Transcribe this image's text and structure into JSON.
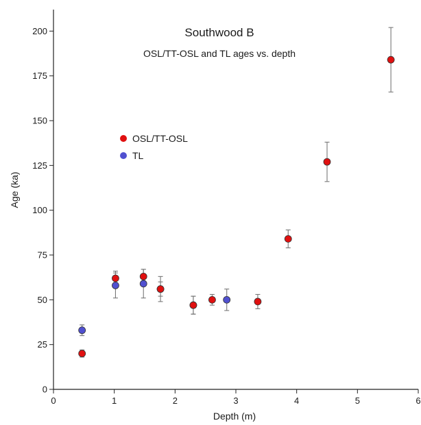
{
  "chart_data": {
    "type": "scatter",
    "title": "Southwood B",
    "subtitle": "OSL/TT-OSL and TL ages vs. depth",
    "xlabel": "Depth (m)",
    "ylabel": "Age (ka)",
    "xlim": [
      0,
      6
    ],
    "ylim": [
      0,
      212
    ],
    "xticks": [
      0,
      1,
      2,
      3,
      4,
      5,
      6
    ],
    "yticks": [
      0,
      25,
      50,
      75,
      100,
      125,
      150,
      175,
      200
    ],
    "grid": false,
    "legend_position": "upper-left",
    "series": [
      {
        "name": "OSL/TT-OSL",
        "color": "#e01010",
        "points": [
          {
            "x": 0.47,
            "y": 20,
            "err": 2
          },
          {
            "x": 1.02,
            "y": 62,
            "err": 4
          },
          {
            "x": 1.48,
            "y": 63,
            "err": 4
          },
          {
            "x": 1.76,
            "y": 56,
            "err": 4
          },
          {
            "x": 2.3,
            "y": 47,
            "err": 5
          },
          {
            "x": 2.61,
            "y": 50,
            "err": 3
          },
          {
            "x": 3.36,
            "y": 49,
            "err": 4
          },
          {
            "x": 3.86,
            "y": 84,
            "err": 5
          },
          {
            "x": 4.5,
            "y": 127,
            "err": 11
          },
          {
            "x": 5.55,
            "y": 184,
            "err": 18
          }
        ]
      },
      {
        "name": "TL",
        "color": "#5050d0",
        "points": [
          {
            "x": 0.47,
            "y": 33,
            "err": 3
          },
          {
            "x": 1.02,
            "y": 58,
            "err": 7
          },
          {
            "x": 1.48,
            "y": 59,
            "err": 8
          },
          {
            "x": 1.76,
            "y": 56,
            "err": 7
          },
          {
            "x": 2.3,
            "y": 47,
            "err": 5
          },
          {
            "x": 2.85,
            "y": 50,
            "err": 6
          }
        ]
      }
    ]
  }
}
